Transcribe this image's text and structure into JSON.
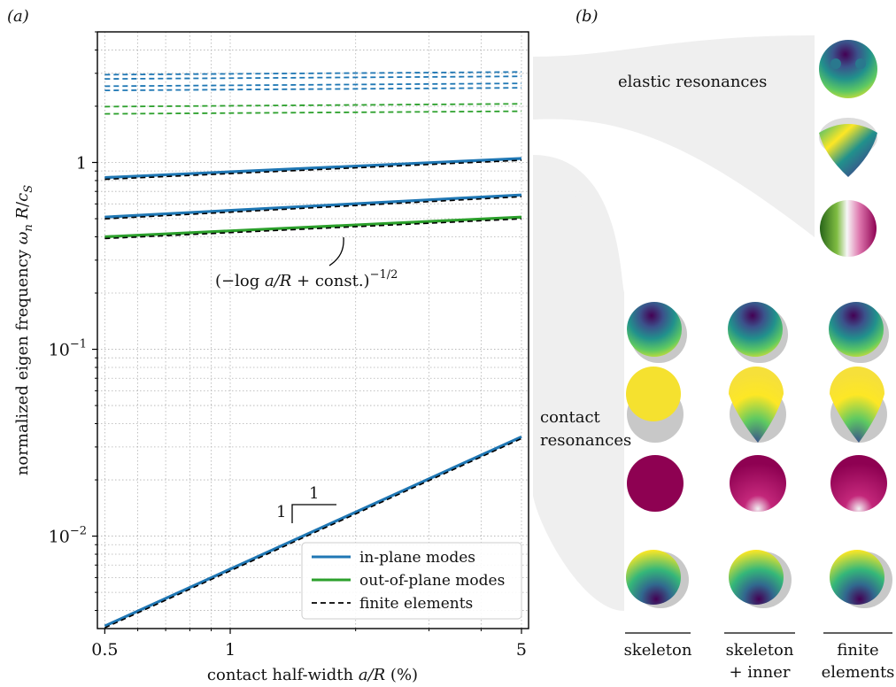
{
  "panel_a": {
    "label": "(a)",
    "ylabel_main": "normalized eigen frequency ",
    "ylabel_omega": "ω",
    "ylabel_n": "n",
    "ylabel_R": " R",
    "ylabel_slash": "/",
    "ylabel_c": "c",
    "ylabel_S": "S",
    "xlabel_main": "contact half-width ",
    "xlabel_italic": "a/R",
    "xlabel_unit": " (%)",
    "annotation": {
      "prefix": "(−log ",
      "italic": "a/R",
      "suffix": " + const.)",
      "exponent": "−1/2"
    },
    "slope_triangle": {
      "run_label": "1",
      "rise_label": "1"
    }
  },
  "panel_b": {
    "label": "(b)",
    "elastic_label": "elastic resonances",
    "contact_label_line1": "contact",
    "contact_label_line2": "resonances",
    "columns": [
      {
        "line1": "skeleton",
        "line2": ""
      },
      {
        "line1": "skeleton",
        "line2": "+ inner"
      },
      {
        "line1": "finite",
        "line2": "elements"
      }
    ]
  },
  "colors": {
    "in_plane": "#1f77b4",
    "out_of_plane": "#2ca02c",
    "finite_elements": "#000000",
    "grid": "#b0b0b0",
    "band": "#efefef"
  },
  "chart_data": {
    "type": "line",
    "xscale": "log",
    "yscale": "log",
    "xlim": [
      0.48,
      5.2
    ],
    "ylim": [
      0.0032,
      5.0
    ],
    "x_ticks": [
      {
        "value": 0.5,
        "label": "0.5"
      },
      {
        "value": 1,
        "label": "1"
      },
      {
        "value": 5,
        "label": "5"
      }
    ],
    "y_ticks": [
      {
        "value": 1,
        "base": "1",
        "exp": ""
      },
      {
        "value": 0.1,
        "base": "10",
        "exp": "−1"
      },
      {
        "value": 0.01,
        "base": "10",
        "exp": "−2"
      }
    ],
    "grid": true,
    "legend": {
      "position": "lower-right",
      "entries": [
        {
          "label": "in-plane modes",
          "color": "#1f77b4",
          "style": "solid"
        },
        {
          "label": "out-of-plane modes",
          "color": "#2ca02c",
          "style": "solid"
        },
        {
          "label": "finite elements",
          "color": "#000000",
          "style": "dashed"
        }
      ]
    },
    "series": [
      {
        "kind": "in_plane",
        "x": [
          0.5,
          5
        ],
        "y": [
          0.83,
          1.05
        ]
      },
      {
        "kind": "in_plane",
        "x": [
          0.5,
          5
        ],
        "y": [
          0.51,
          0.67
        ]
      },
      {
        "kind": "out_of_plane",
        "x": [
          0.5,
          5
        ],
        "y": [
          0.4,
          0.51
        ]
      },
      {
        "kind": "in_plane",
        "x": [
          0.5,
          5
        ],
        "y": [
          0.0033,
          0.034
        ]
      },
      {
        "kind": "elastic_in_plane",
        "x": [
          0.5,
          5
        ],
        "y": [
          2.95,
          3.05
        ]
      },
      {
        "kind": "elastic_in_plane",
        "x": [
          0.5,
          5
        ],
        "y": [
          2.8,
          2.89
        ]
      },
      {
        "kind": "elastic_in_plane",
        "x": [
          0.5,
          5
        ],
        "y": [
          2.56,
          2.65
        ]
      },
      {
        "kind": "elastic_in_plane",
        "x": [
          0.5,
          5
        ],
        "y": [
          2.43,
          2.51
        ]
      },
      {
        "kind": "elastic_out_of_plane",
        "x": [
          0.5,
          5
        ],
        "y": [
          1.99,
          2.06
        ]
      },
      {
        "kind": "elastic_out_of_plane",
        "x": [
          0.5,
          5
        ],
        "y": [
          1.82,
          1.88
        ]
      }
    ]
  }
}
